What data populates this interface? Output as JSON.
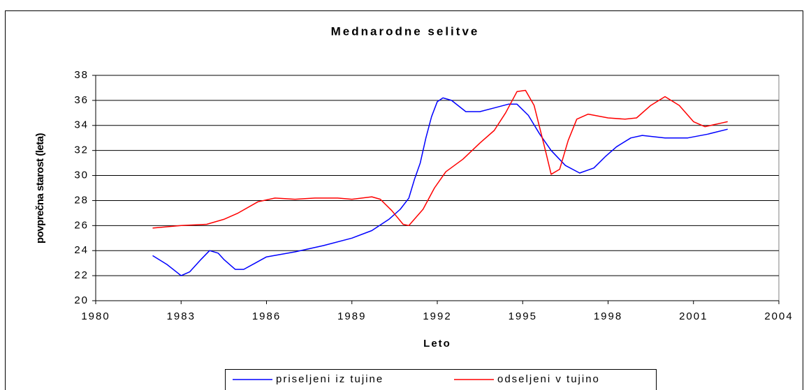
{
  "chart_data": {
    "type": "line",
    "title": "Mednarodne selitve",
    "x_label": "Leto",
    "y_label": "povprečna starost (leta)",
    "xlim": [
      1980,
      2004
    ],
    "xticks": [
      1980,
      1983,
      1986,
      1989,
      1992,
      1995,
      1998,
      2001,
      2004
    ],
    "ylim": [
      20,
      38
    ],
    "yticks": [
      20,
      22,
      24,
      26,
      28,
      30,
      32,
      34,
      36,
      38
    ],
    "grid": true,
    "legend": "bottom",
    "series": [
      {
        "name": "priseljeni iz tujine",
        "color": "#0000ff",
        "x": [
          1982,
          1982.5,
          1983,
          1983.3,
          1983.7,
          1984,
          1984.3,
          1984.5,
          1984.9,
          1985.2,
          1985.6,
          1986,
          1986.5,
          1987,
          1988,
          1989,
          1989.7,
          1990.3,
          1990.7,
          1991,
          1991.2,
          1991.4,
          1991.6,
          1991.8,
          1992,
          1992.2,
          1992.5,
          1993,
          1993.5,
          1994,
          1994.5,
          1994.8,
          1995.2,
          1995.6,
          1996,
          1996.5,
          1997,
          1997.5,
          1997.9,
          1998.3,
          1998.8,
          1999.2,
          2000,
          2000.8,
          2001.5,
          2002.2
        ],
        "values": [
          23.6,
          22.9,
          22.0,
          22.3,
          23.3,
          24.0,
          23.8,
          23.3,
          22.5,
          22.5,
          23.0,
          23.5,
          23.7,
          23.9,
          24.4,
          25.0,
          25.6,
          26.5,
          27.3,
          28.2,
          29.7,
          31.0,
          33.0,
          34.7,
          35.9,
          36.2,
          36.0,
          35.1,
          35.1,
          35.4,
          35.7,
          35.7,
          34.8,
          33.3,
          32.0,
          30.8,
          30.2,
          30.6,
          31.5,
          32.3,
          33.0,
          33.2,
          33.0,
          33.0,
          33.3,
          33.7
        ]
      },
      {
        "name": "odseljeni v tujino",
        "color": "#ff0000",
        "x": [
          1982,
          1983,
          1983.9,
          1984.5,
          1985,
          1985.7,
          1986.3,
          1987,
          1987.7,
          1988.5,
          1989,
          1989.7,
          1990,
          1990.4,
          1990.8,
          1991,
          1991.5,
          1991.9,
          1992.3,
          1992.9,
          1993.5,
          1994,
          1994.4,
          1994.8,
          1995.1,
          1995.4,
          1995.8,
          1996,
          1996.3,
          1996.6,
          1996.9,
          1997.3,
          1998,
          1998.6,
          1999,
          1999.5,
          2000,
          2000.5,
          2001,
          2001.4,
          2002,
          2002.2
        ],
        "values": [
          25.8,
          26.0,
          26.1,
          26.5,
          27.0,
          27.9,
          28.2,
          28.1,
          28.2,
          28.2,
          28.1,
          28.3,
          28.1,
          27.2,
          26.1,
          26.0,
          27.3,
          29.0,
          30.3,
          31.3,
          32.6,
          33.6,
          35.0,
          36.7,
          36.8,
          35.6,
          32.0,
          30.1,
          30.5,
          32.8,
          34.5,
          34.9,
          34.6,
          34.5,
          34.6,
          35.6,
          36.3,
          35.6,
          34.3,
          33.9,
          34.2,
          34.3
        ]
      }
    ]
  }
}
